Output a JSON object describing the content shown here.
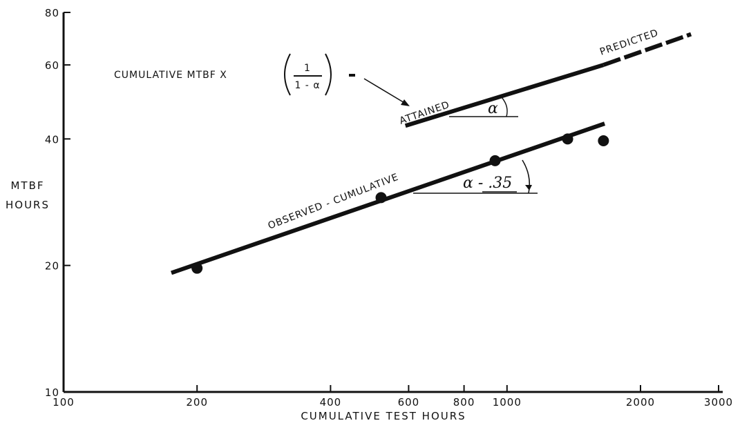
{
  "chart_data": {
    "type": "line",
    "title": "",
    "xlabel": "CUMULATIVE TEST HOURS",
    "ylabel": [
      "MTBF",
      "HOURS"
    ],
    "x_scale": "log",
    "y_scale": "log",
    "xlim": [
      100,
      3000
    ],
    "ylim": [
      10,
      80
    ],
    "x_ticks": [
      100,
      200,
      400,
      600,
      800,
      1000,
      2000,
      3000
    ],
    "x_tick_labels": [
      "100",
      "200",
      "400",
      "600",
      "800",
      "1000",
      "2000",
      "3000"
    ],
    "y_ticks": [
      10,
      20,
      40,
      60,
      80
    ],
    "y_tick_labels": [
      "10",
      "20",
      "40",
      "60",
      "80"
    ],
    "grid": false,
    "series": [
      {
        "name": "OBSERVED - CUMULATIVE",
        "style": "solid-thick",
        "x": [
          175,
          1660
        ],
        "y": [
          19.2,
          43.5
        ]
      },
      {
        "name": "ATTAINED",
        "style": "solid-thick",
        "x": [
          590,
          1650
        ],
        "y": [
          43.0,
          60.0
        ]
      },
      {
        "name": "PREDICTED",
        "style": "dashed-thick",
        "x": [
          1650,
          2600
        ],
        "y": [
          60.0,
          71.0
        ]
      }
    ],
    "points": [
      {
        "x": 200,
        "y": 19.7
      },
      {
        "x": 520,
        "y": 29.0
      },
      {
        "x": 940,
        "y": 35.5
      },
      {
        "x": 1370,
        "y": 40.0
      },
      {
        "x": 1650,
        "y": 39.6
      }
    ],
    "annotations": {
      "observed_label": "OBSERVED - CUMULATIVE",
      "attained_label": "ATTAINED",
      "predicted_label": "PREDICTED",
      "formula_prefix": "CUMULATIVE MTBF X",
      "formula_numerator": "1",
      "formula_denominator": "1 - α",
      "alpha_symbol": "α",
      "alpha_value": "α - .35"
    }
  }
}
